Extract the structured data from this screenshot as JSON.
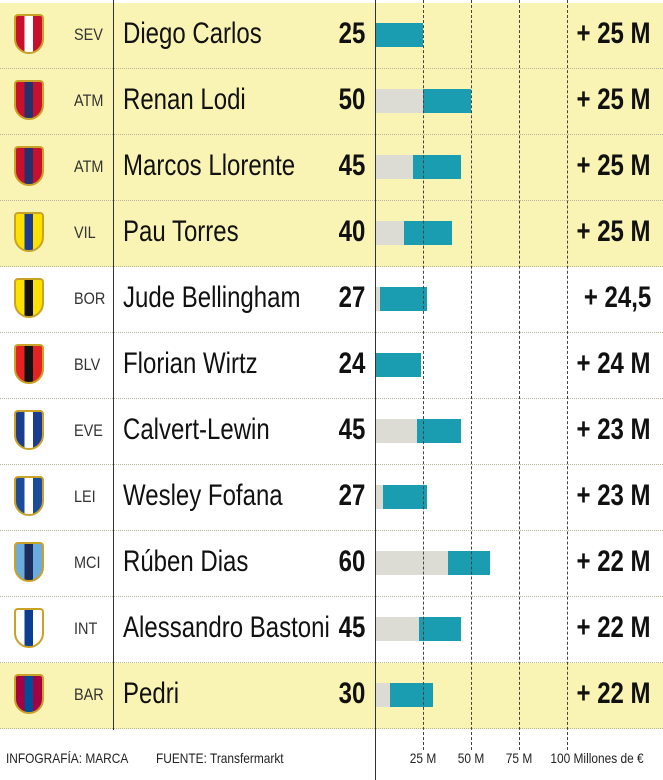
{
  "chart_data": {
    "type": "bar",
    "title": "",
    "xlabel": "Millones de €",
    "xlim": [
      0,
      100
    ],
    "ticks": [
      "25 M",
      "50 M",
      "75 M",
      "100 Millones de €"
    ],
    "tick_values": [
      25,
      50,
      75,
      100
    ],
    "colors": {
      "base": "#dcdcd5",
      "increase": "#1a9db0",
      "highlight": "#faf4b4"
    },
    "rows": [
      {
        "club": "SEV",
        "player": "Diego Carlos",
        "value": "25",
        "value_num": 25,
        "increase": "+ 25 M",
        "increase_num": 25,
        "highlight": true,
        "colors": [
          "#c8102e",
          "#ffffff"
        ]
      },
      {
        "club": "ATM",
        "player": "Renan Lodi",
        "value": "50",
        "value_num": 50,
        "increase": "+ 25 M",
        "increase_num": 25,
        "highlight": true,
        "colors": [
          "#c8102e",
          "#27306b"
        ]
      },
      {
        "club": "ATM",
        "player": "Marcos Llorente",
        "value": "45",
        "value_num": 45,
        "increase": "+ 25 M",
        "increase_num": 25,
        "highlight": true,
        "colors": [
          "#c8102e",
          "#27306b"
        ]
      },
      {
        "club": "VIL",
        "player": "Pau Torres",
        "value": "40",
        "value_num": 40,
        "increase": "+ 25 M",
        "increase_num": 25,
        "highlight": true,
        "colors": [
          "#ffe100",
          "#1b3c8f"
        ]
      },
      {
        "club": "BOR",
        "player": "Jude Bellingham",
        "value": "27",
        "value_num": 27,
        "increase": "+ 24,5",
        "increase_num": 24.5,
        "highlight": false,
        "colors": [
          "#fde100",
          "#111111"
        ]
      },
      {
        "club": "BLV",
        "player": "Florian Wirtz",
        "value": "24",
        "value_num": 24,
        "increase": "+ 24 M",
        "increase_num": 24,
        "highlight": false,
        "colors": [
          "#e32221",
          "#111111"
        ]
      },
      {
        "club": "EVE",
        "player": "Calvert-Lewin",
        "value": "45",
        "value_num": 45,
        "increase": "+ 23 M",
        "increase_num": 23,
        "highlight": false,
        "colors": [
          "#1b3c8f",
          "#ffffff"
        ]
      },
      {
        "club": "LEI",
        "player": "Wesley Fofana",
        "value": "27",
        "value_num": 27,
        "increase": "+ 23 M",
        "increase_num": 23,
        "highlight": false,
        "colors": [
          "#1b4b9b",
          "#ffffff"
        ]
      },
      {
        "club": "MCI",
        "player": "Rúben Dias",
        "value": "60",
        "value_num": 60,
        "increase": "+ 22 M",
        "increase_num": 22,
        "highlight": false,
        "colors": [
          "#6cabdd",
          "#1c2c5b"
        ]
      },
      {
        "club": "INT",
        "player": "Alessandro Bastoni",
        "value": "45",
        "value_num": 45,
        "increase": "+ 22 M",
        "increase_num": 22,
        "highlight": false,
        "colors": [
          "#ffffff",
          "#0b3d91"
        ]
      },
      {
        "club": "BAR",
        "player": "Pedri",
        "value": "30",
        "value_num": 30,
        "increase": "+ 22 M",
        "increase_num": 22,
        "highlight": true,
        "colors": [
          "#a50044",
          "#004d98"
        ]
      }
    ]
  },
  "footer": {
    "credit": "INFOGRAFÍA: MARCA",
    "source": "FUENTE: Transfermarkt"
  }
}
